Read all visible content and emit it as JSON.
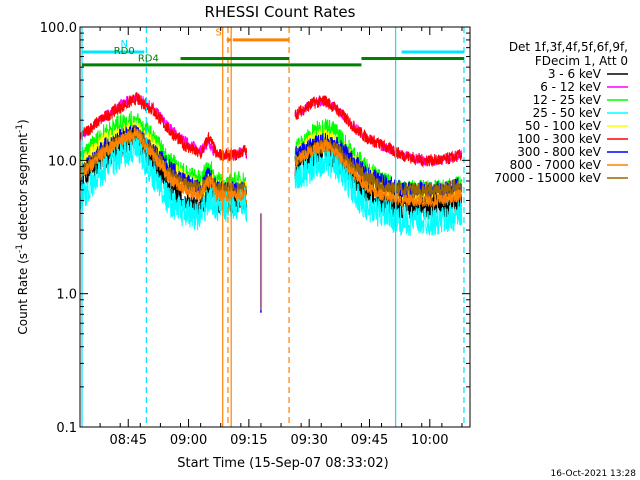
{
  "chart_data": {
    "type": "line",
    "title": "RHESSI Count Rates",
    "xlabel": "Start Time (15-Sep-07 08:33:02)",
    "ylabel": "Count Rate (s⁻¹ detector segment⁻¹)",
    "ylabel_main": "Count Rate (s",
    "ylabel_mid": " detector segment",
    "ylabel_end": ")",
    "ylabel_sup": "-1",
    "yscale": "log",
    "ylim": [
      0.1,
      100.0
    ],
    "xlim_minutes_from_start": [
      0,
      97
    ],
    "y_ticks": [
      {
        "value": 0.1,
        "label": "0.1"
      },
      {
        "value": 1.0,
        "label": "1.0"
      },
      {
        "value": 10.0,
        "label": "10.0"
      },
      {
        "value": 100.0,
        "label": "100.0"
      }
    ],
    "x_ticks": [
      {
        "minute": 12,
        "label": "08:45"
      },
      {
        "minute": 27,
        "label": "09:00"
      },
      {
        "minute": 42,
        "label": "09:15"
      },
      {
        "minute": 57,
        "label": "09:30"
      },
      {
        "minute": 72,
        "label": "09:45"
      },
      {
        "minute": 87,
        "label": "10:00"
      }
    ],
    "legend": {
      "position": "right",
      "header": [
        "Det 1f,3f,4f,5f,6f,9f,",
        "FDecim 1, Att 0"
      ],
      "entries": [
        {
          "label": "3 - 6 keV",
          "color": "#000000"
        },
        {
          "label": "6 - 12 keV",
          "color": "#ff00ff"
        },
        {
          "label": "12 - 25 keV",
          "color": "#00ff00"
        },
        {
          "label": "25 - 50 keV",
          "color": "#00ffff"
        },
        {
          "label": "50 - 100 keV",
          "color": "#ffff00"
        },
        {
          "label": "100 - 300 keV",
          "color": "#ff0000"
        },
        {
          "label": "300 - 800 keV",
          "color": "#0000ff"
        },
        {
          "label": "800 - 7000 keV",
          "color": "#ff8000"
        },
        {
          "label": "7000 - 15000 keV",
          "color": "#996600"
        }
      ]
    },
    "flag_bars": [
      {
        "label": "N",
        "color": "#00e5ff",
        "start": 0.5,
        "end": 16.0,
        "y": 65
      },
      {
        "label": "N",
        "color": "#00e5ff",
        "start": 80.0,
        "end": 95.5,
        "y": 65
      },
      {
        "label": "RD0",
        "color": "#008000",
        "start": 25.0,
        "end": 52.0,
        "y": 58
      },
      {
        "label": "RD4",
        "color": "#008000",
        "start": 0.5,
        "end": 52.0,
        "y": 52
      },
      {
        "label": "RD4",
        "color": "#008000",
        "start": 52.0,
        "end": 70.0,
        "y": 52
      },
      {
        "label": "RD4",
        "color": "#008000",
        "start": 70.0,
        "end": 95.5,
        "y": 58
      },
      {
        "label": "S",
        "color": "#ff8000",
        "start": 36.5,
        "end": 37.5,
        "y": 80
      },
      {
        "label": "S",
        "color": "#ff8000",
        "start": 38.0,
        "end": 52.0,
        "y": 80
      }
    ],
    "vertical_markers": [
      {
        "minute": 0.5,
        "color": "#00e5ff",
        "style": "solid"
      },
      {
        "minute": 16.5,
        "color": "#00e5ff",
        "style": "dashed"
      },
      {
        "minute": 35.5,
        "color": "#ff8000",
        "style": "solid"
      },
      {
        "minute": 36.8,
        "color": "#ff8000",
        "style": "dashed"
      },
      {
        "minute": 37.6,
        "color": "#ff8000",
        "style": "solid"
      },
      {
        "minute": 52.0,
        "color": "#ff8000",
        "style": "dashed"
      },
      {
        "minute": 78.5,
        "color": "#00e5ff",
        "style": "solid"
      },
      {
        "minute": 95.5,
        "color": "#00e5ff",
        "style": "dashed"
      }
    ],
    "series": [
      {
        "name": "6 - 12 keV",
        "color": "#ff00ff",
        "noise": 0.04,
        "segments": [
          {
            "x": [
              0,
              5,
              10,
              14,
              18,
              22,
              26,
              30,
              32,
              33,
              34,
              36,
              39,
              41,
              41.5
            ],
            "y": [
              15,
              20,
              26,
              30,
              25,
              18,
              14,
              12,
              13,
              12,
              11,
              11,
              11,
              12,
              11
            ]
          },
          {
            "x": [
              53.5,
              58,
              61,
              64,
              68,
              71,
              75,
              80,
              85,
              90,
              95
            ],
            "y": [
              22,
              27,
              28,
              24,
              18,
              15,
              13,
              11,
              10,
              10,
              11
            ]
          }
        ]
      },
      {
        "name": "100 - 300 keV",
        "color": "#ff0000",
        "noise": 0.05,
        "segments": [
          {
            "x": [
              0,
              5,
              10,
              14,
              18,
              22,
              26,
              30,
              32,
              33,
              34,
              36,
              39,
              41,
              41.5
            ],
            "y": [
              15,
              20,
              25,
              29,
              24,
              17,
              13,
              11,
              15,
              13,
              11,
              11,
              11,
              12,
              11
            ]
          },
          {
            "x": [
              53.5,
              58,
              61,
              64,
              68,
              71,
              75,
              80,
              85,
              90,
              95
            ],
            "y": [
              22,
              27,
              28,
              24,
              18,
              15,
              13,
              11,
              10,
              10,
              11
            ]
          }
        ]
      },
      {
        "name": "12 - 25 keV",
        "color": "#00ff00",
        "noise": 0.08,
        "segments": [
          {
            "x": [
              0,
              5,
              10,
              14,
              18,
              22,
              26,
              30,
              32,
              33,
              34,
              36,
              39,
              41,
              41.5
            ],
            "y": [
              10,
              15,
              19,
              20,
              15,
              10,
              8,
              7,
              9,
              8,
              7,
              6.5,
              7,
              7,
              6
            ]
          },
          {
            "x": [
              53.5,
              58,
              61,
              64,
              68,
              71,
              75,
              80,
              85,
              90,
              95
            ],
            "y": [
              12,
              16,
              18,
              16,
              11,
              9,
              7,
              6,
              6,
              6,
              6.5
            ]
          }
        ]
      },
      {
        "name": "50 - 100 keV",
        "color": "#ffff00",
        "noise": 0.08,
        "segments": [
          {
            "x": [
              0,
              5,
              10,
              14,
              18,
              22,
              26,
              30,
              32,
              33,
              34,
              36,
              39,
              41,
              41.5
            ],
            "y": [
              9,
              13,
              16,
              17,
              13,
              9,
              7,
              6,
              7,
              7,
              6,
              6,
              6,
              6,
              6
            ]
          },
          {
            "x": [
              53.5,
              58,
              61,
              64,
              68,
              71,
              75,
              80,
              85,
              90,
              95
            ],
            "y": [
              11,
              14,
              15,
              13,
              10,
              8,
              6.5,
              5.5,
              5.5,
              5.5,
              6
            ]
          }
        ]
      },
      {
        "name": "300 - 800 keV",
        "color": "#0000ff",
        "noise": 0.07,
        "segments": [
          {
            "x": [
              0,
              5,
              10,
              14,
              18,
              22,
              26,
              30,
              32,
              33,
              34,
              36,
              39,
              41,
              41.5
            ],
            "y": [
              8,
              12,
              15,
              16,
              12,
              9,
              7,
              6,
              8,
              7,
              6,
              6,
              6,
              6,
              5
            ]
          },
          {
            "x": [
              53.5,
              58,
              61,
              64,
              68,
              71,
              75,
              80,
              85,
              90,
              95
            ],
            "y": [
              11,
              13,
              14,
              13,
              10,
              8,
              7,
              6,
              6,
              6,
              6.5
            ]
          }
        ]
      },
      {
        "name": "3 - 6 keV",
        "color": "#000000",
        "noise": 0.1,
        "segments": [
          {
            "x": [
              0,
              5,
              10,
              14,
              18,
              22,
              26,
              30,
              32,
              33,
              34,
              36,
              39,
              41,
              41.5
            ],
            "y": [
              7,
              10,
              13,
              15,
              10,
              6.5,
              5,
              4.5,
              6,
              6,
              5,
              5,
              5,
              5,
              4.5
            ]
          },
          {
            "x": [
              53.5,
              58,
              61,
              64,
              68,
              71,
              75,
              80,
              85,
              90,
              95
            ],
            "y": [
              9,
              11,
              12,
              10,
              7.5,
              6,
              5,
              4.5,
              4.5,
              4.5,
              5
            ]
          }
        ]
      },
      {
        "name": "7000 - 15000 keV",
        "color": "#996600",
        "noise": 0.06,
        "segments": [
          {
            "x": [
              0,
              5,
              10,
              14,
              18,
              22,
              26,
              30,
              32,
              33,
              34,
              36,
              39,
              41,
              41.5
            ],
            "y": [
              8,
              11,
              14,
              16,
              12,
              8,
              6.5,
              6,
              7,
              6.5,
              6,
              6,
              6,
              6,
              5.5
            ]
          },
          {
            "x": [
              53.5,
              58,
              61,
              64,
              68,
              71,
              75,
              80,
              85,
              90,
              95
            ],
            "y": [
              10,
              12,
              13,
              12,
              9,
              7.5,
              6.5,
              6,
              6,
              6,
              6.5
            ]
          }
        ]
      },
      {
        "name": "25 - 50 keV",
        "color": "#00ffff",
        "noise": 0.12,
        "segments": [
          {
            "x": [
              0,
              5,
              10,
              14,
              18,
              22,
              26,
              30,
              32,
              33,
              34,
              36,
              39,
              41,
              41.5
            ],
            "y": [
              5,
              8,
              11,
              12,
              8,
              5,
              4,
              3.8,
              5,
              5,
              4.5,
              4.5,
              4.5,
              5,
              4
            ]
          },
          {
            "x": [
              53.5,
              58,
              61,
              64,
              68,
              71,
              75,
              80,
              85,
              90,
              95
            ],
            "y": [
              7,
              9,
              10,
              9,
              6,
              4.5,
              4,
              3.5,
              3.5,
              3.5,
              4
            ]
          }
        ]
      },
      {
        "name": "800 - 7000 keV",
        "color": "#ff8000",
        "noise": 0.05,
        "segments": [
          {
            "x": [
              0,
              5,
              10,
              14,
              18,
              22,
              26,
              30,
              32,
              33,
              34,
              36,
              39,
              41,
              41.5
            ],
            "y": [
              7.5,
              11,
              14,
              16,
              11,
              7.5,
              6,
              5.5,
              7,
              7,
              5.5,
              5.5,
              5.5,
              5.5,
              5
            ]
          },
          {
            "x": [
              53.5,
              58,
              61,
              64,
              68,
              71,
              75,
              80,
              85,
              90,
              95
            ],
            "y": [
              10,
              12,
              13,
              11,
              8,
              6.5,
              5.5,
              5,
              5,
              5,
              5.5
            ]
          }
        ]
      }
    ],
    "spikes": [
      {
        "minute": 45.0,
        "from": 4.0,
        "to": 0.72,
        "color": "#0000ff"
      },
      {
        "minute": 45.1,
        "from": 4.0,
        "to": 0.75,
        "color": "#ff8000"
      }
    ]
  },
  "footer": {
    "timestamp": "16-Oct-2021 13:28"
  }
}
